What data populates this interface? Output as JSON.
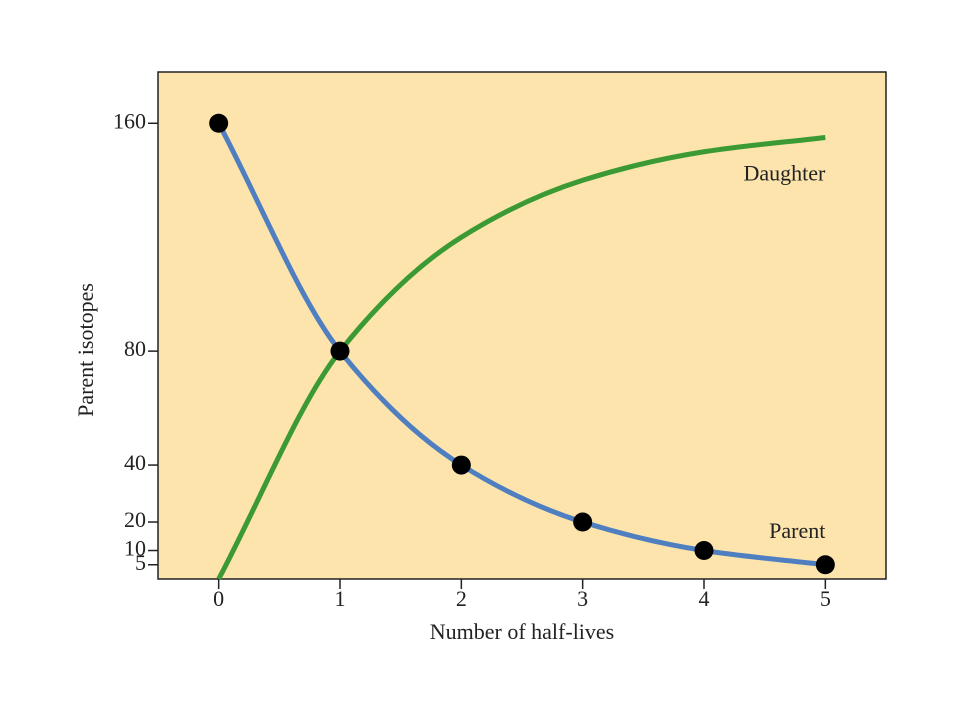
{
  "chart_data": {
    "type": "line",
    "x_label": "Number of half-lives",
    "y_label": "Parent isotopes",
    "x": [
      0,
      1,
      2,
      3,
      4,
      5
    ],
    "series": [
      {
        "name": "Parent",
        "color": "#4f7fc0",
        "values": [
          160,
          80,
          40,
          20,
          10,
          5
        ],
        "markers": true
      },
      {
        "name": "Daughter",
        "color": "#3c9a34",
        "values": [
          0,
          80,
          120,
          140,
          150,
          155
        ],
        "markers": false
      }
    ],
    "xlim": [
      -0.5,
      5.5
    ],
    "ylim": [
      0,
      178
    ],
    "xticks": [
      0,
      1,
      2,
      3,
      4,
      5
    ],
    "yticks": [
      5,
      10,
      20,
      40,
      80,
      160
    ],
    "plot_background": "#fce4ac",
    "marker_color": "#000000"
  }
}
